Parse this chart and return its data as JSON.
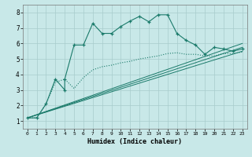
{
  "xlabel": "Humidex (Indice chaleur)",
  "bg_color": "#c8e8e8",
  "grid_color": "#a8cccc",
  "line_color": "#1a7a6a",
  "xlim": [
    -0.5,
    23.5
  ],
  "ylim": [
    0.5,
    8.5
  ],
  "xticks": [
    0,
    1,
    2,
    3,
    4,
    5,
    6,
    7,
    8,
    9,
    10,
    11,
    12,
    13,
    14,
    15,
    16,
    17,
    18,
    19,
    20,
    21,
    22,
    23
  ],
  "yticks": [
    1,
    2,
    3,
    4,
    5,
    6,
    7,
    8
  ],
  "curve_main_x": [
    0,
    1,
    2,
    3,
    4,
    4,
    5,
    6,
    7,
    8,
    9,
    10,
    11,
    12,
    13,
    14,
    15,
    16,
    17,
    18,
    19,
    20,
    21,
    22,
    23
  ],
  "curve_main_y": [
    1.2,
    1.2,
    2.1,
    3.7,
    3.0,
    3.7,
    5.9,
    5.9,
    7.3,
    6.65,
    6.65,
    7.1,
    7.45,
    7.75,
    7.4,
    7.85,
    7.85,
    6.65,
    6.2,
    5.9,
    5.3,
    5.75,
    5.65,
    5.5,
    5.65
  ],
  "curve_dot_x": [
    0,
    1,
    2,
    3,
    4,
    5,
    6,
    7,
    8,
    9,
    10,
    11,
    12,
    13,
    14,
    15,
    16,
    17,
    18,
    19,
    20,
    21,
    22,
    23
  ],
  "curve_dot_y": [
    1.2,
    1.2,
    2.1,
    3.5,
    3.7,
    3.1,
    3.8,
    4.3,
    4.5,
    4.6,
    4.75,
    4.85,
    5.0,
    5.1,
    5.2,
    5.35,
    5.4,
    5.3,
    5.3,
    5.2,
    5.2,
    5.35,
    5.35,
    5.45
  ],
  "line1_x": [
    0,
    23
  ],
  "line1_y": [
    1.2,
    5.5
  ],
  "line2_x": [
    0,
    23
  ],
  "line2_y": [
    1.2,
    5.75
  ],
  "line3_x": [
    0,
    23
  ],
  "line3_y": [
    1.2,
    6.0
  ]
}
